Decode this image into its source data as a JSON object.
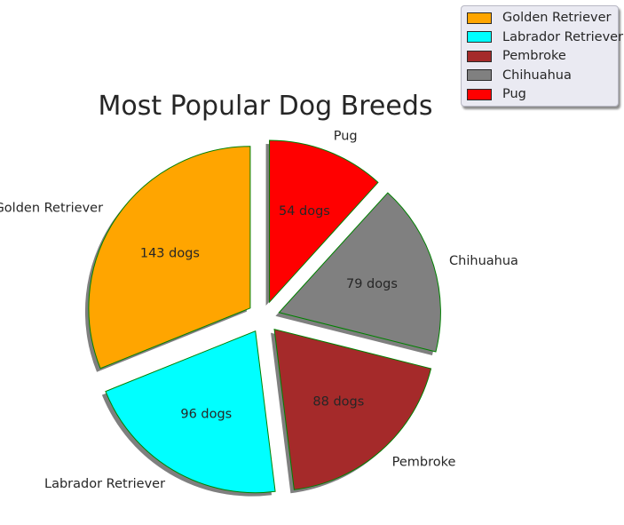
{
  "chart_data": {
    "type": "pie",
    "title": "Most Popular Dog Breeds",
    "categories": [
      "Golden Retriever",
      "Labrador Retriever",
      "Pembroke",
      "Chihuahua",
      "Pug"
    ],
    "values": [
      143,
      96,
      88,
      79,
      54
    ],
    "value_labels": [
      "143 dogs",
      "96 dogs",
      "88 dogs",
      "79 dogs",
      "54 dogs"
    ],
    "colors": [
      "#ffa500",
      "#00ffff",
      "#a52a2a",
      "#808080",
      "#ff0000"
    ],
    "edge_color": "#008000",
    "shadow": true,
    "exploded": true,
    "start_angle_deg": 90,
    "direction": "counterclockwise",
    "legend_position": "top-right"
  }
}
